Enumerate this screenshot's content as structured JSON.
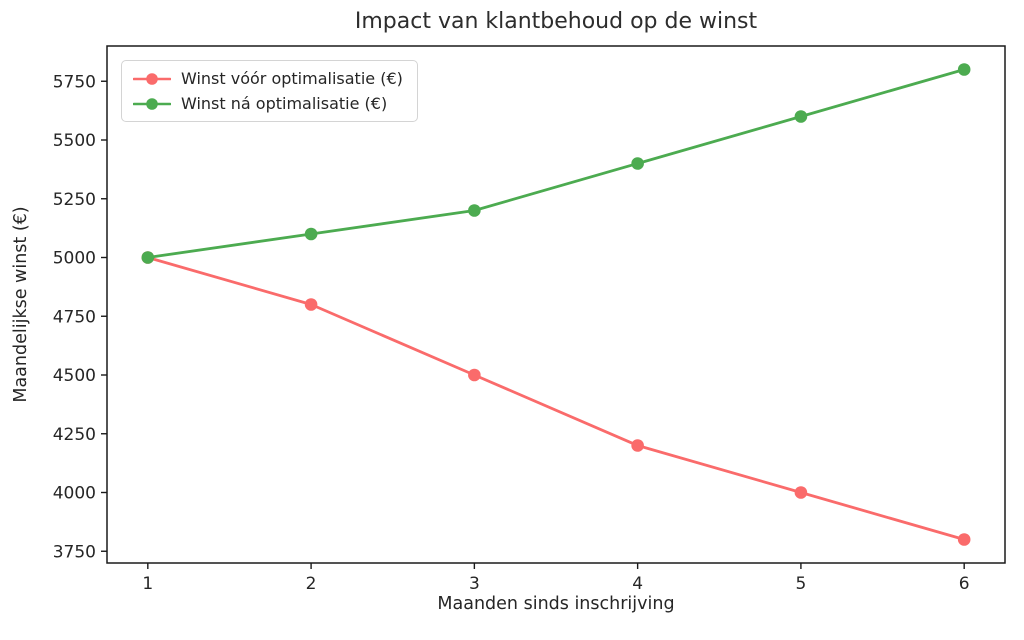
{
  "chart_data": {
    "type": "line",
    "title": "Impact van klantbehoud op de winst",
    "xlabel": "Maanden sinds inschrijving",
    "ylabel": "Maandelijkse winst (€)",
    "x": [
      1,
      2,
      3,
      4,
      5,
      6
    ],
    "x_tick_labels": [
      "1",
      "2",
      "3",
      "4",
      "5",
      "6"
    ],
    "y_ticks": [
      3750,
      4000,
      4250,
      4500,
      4750,
      5000,
      5250,
      5500,
      5750
    ],
    "xlim": [
      0.75,
      6.25
    ],
    "ylim": [
      3700,
      5900
    ],
    "grid": false,
    "legend_position": "upper left",
    "background_color": "#ffffff",
    "axis_color": "#1a1a1a",
    "text_color": "#262626",
    "series": [
      {
        "name": "Winst vóór optimalisatie (€)",
        "values": [
          5000,
          4800,
          4500,
          4200,
          4000,
          3800
        ],
        "color": "#fa6b6b",
        "marker": "circle"
      },
      {
        "name": "Winst ná optimalisatie (€)",
        "values": [
          5000,
          5100,
          5200,
          5400,
          5600,
          5800
        ],
        "color": "#4cab50",
        "marker": "circle"
      }
    ]
  }
}
